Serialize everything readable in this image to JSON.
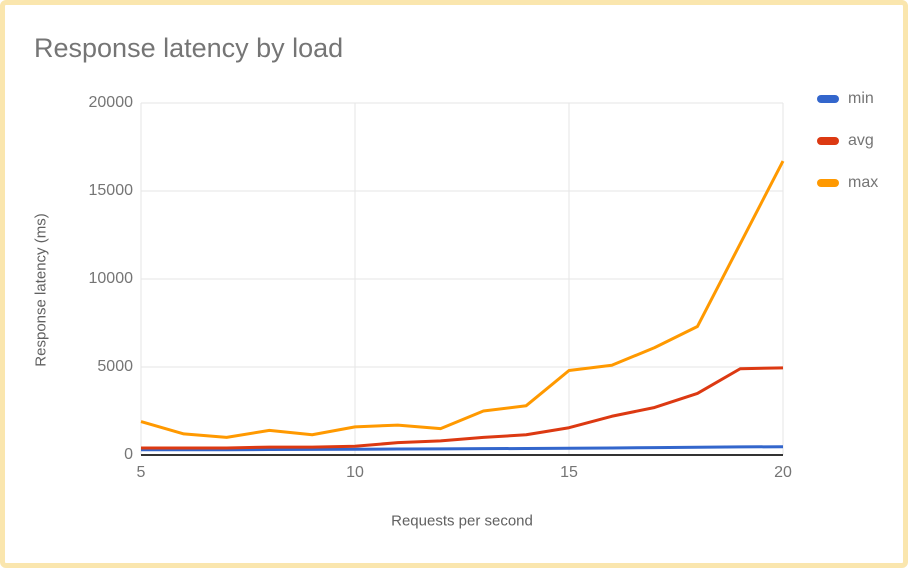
{
  "page": {
    "background": "#ffffff",
    "border_color": "#fae6ae",
    "title_color": "#757575"
  },
  "chart_data": {
    "type": "line",
    "title": "Response latency by load",
    "xlabel": "Requests per second",
    "ylabel": "Response latency (ms)",
    "x": [
      5,
      6,
      7,
      8,
      9,
      10,
      11,
      12,
      13,
      14,
      15,
      16,
      17,
      18,
      19,
      20
    ],
    "series": [
      {
        "name": "min",
        "color": "#3366cc",
        "values": [
          300,
          300,
          300,
          310,
          320,
          330,
          340,
          350,
          360,
          370,
          380,
          400,
          420,
          440,
          460,
          470
        ]
      },
      {
        "name": "avg",
        "color": "#dc3912",
        "values": [
          400,
          400,
          400,
          450,
          450,
          500,
          700,
          800,
          1000,
          1150,
          1550,
          2200,
          2700,
          3500,
          4900,
          4950
        ]
      },
      {
        "name": "max",
        "color": "#ff9900",
        "values": [
          1900,
          1200,
          1000,
          1400,
          1150,
          1600,
          1700,
          1500,
          2500,
          2800,
          4800,
          5100,
          6100,
          7300,
          12000,
          16700
        ]
      }
    ],
    "xlim": [
      5,
      20
    ],
    "ylim": [
      0,
      20000
    ],
    "x_ticks": [
      "5",
      "10",
      "15",
      "20"
    ],
    "y_ticks": [
      "0",
      "5000",
      "10000",
      "15000",
      "20000"
    ],
    "grid": true,
    "legend_position": "right",
    "gridline_color": "#e6e6e6",
    "axis_color": "#333333",
    "tick_label_color": "#757575",
    "axis_title_color": "#616161",
    "line_width": 3
  }
}
